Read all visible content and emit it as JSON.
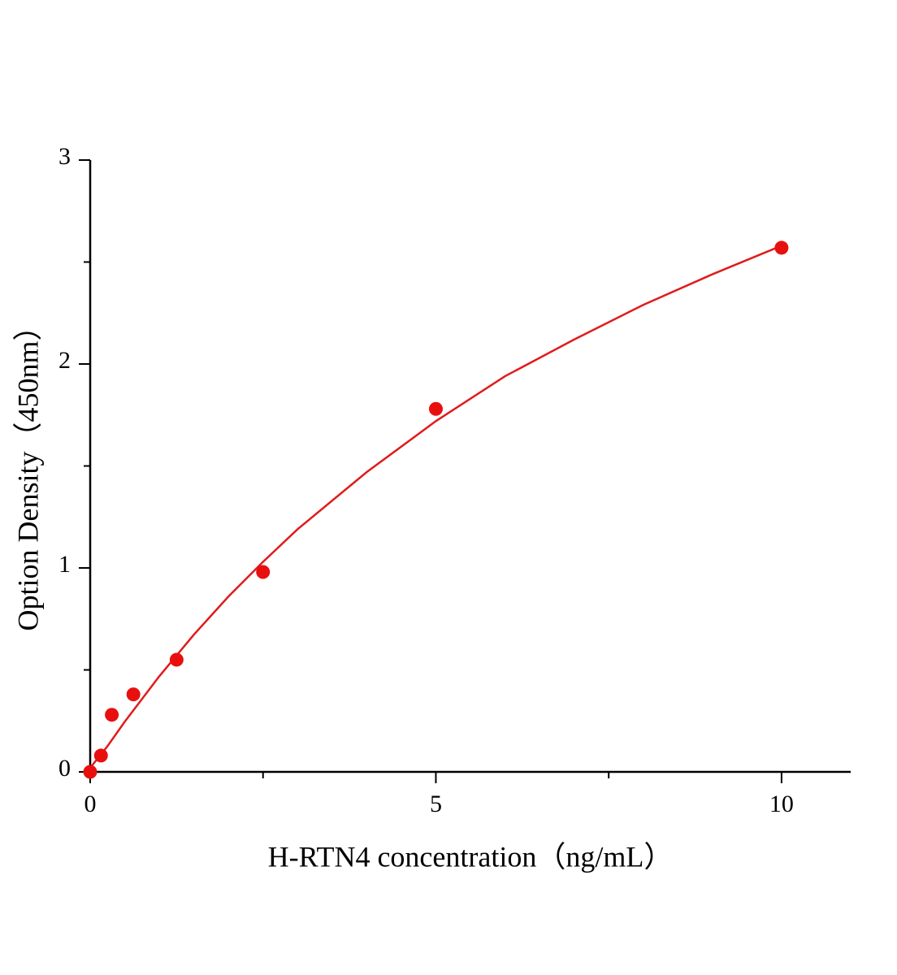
{
  "chart_data": {
    "type": "scatter",
    "x_label": "H-RTN4 concentration（ng/mL）",
    "y_label": "Option Density（450nm）",
    "series": [
      {
        "type": "scatter",
        "color": "#e8100f",
        "x": [
          0,
          0.156,
          0.3125,
          0.625,
          1.25,
          2.5,
          5,
          10
        ],
        "values": [
          0,
          0.08,
          0.28,
          0.38,
          0.55,
          0.98,
          1.78,
          2.57
        ]
      },
      {
        "type": "line",
        "color": "#e01b1b",
        "x": [
          0,
          0.25,
          0.5,
          1,
          1.5,
          2,
          2.5,
          3,
          4,
          5,
          6,
          7,
          8,
          9,
          10
        ],
        "values": [
          0.02,
          0.126,
          0.246,
          0.469,
          0.673,
          0.86,
          1.03,
          1.19,
          1.47,
          1.72,
          1.94,
          2.12,
          2.29,
          2.44,
          2.58
        ]
      }
    ],
    "xlim": [
      0,
      11
    ],
    "ylim": [
      0,
      3
    ],
    "xticks": [
      0,
      5,
      10
    ],
    "yticks": [
      0,
      1,
      2,
      3
    ],
    "x_minor_ticks": [
      2.5,
      7.5
    ],
    "y_minor_ticks": [
      0.5,
      1.5,
      2.5
    ],
    "grid": false
  }
}
